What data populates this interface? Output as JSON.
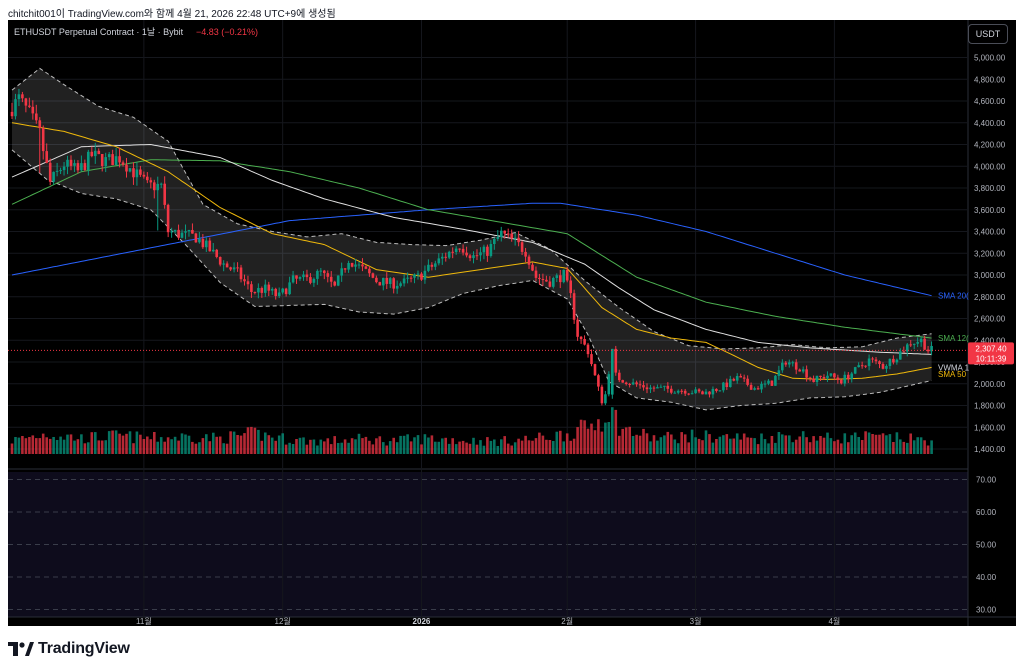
{
  "header": {
    "caption": "chitchit001이 TradingView.com와 함께 4월 21, 2026 22:48 UTC+9에 생성됨"
  },
  "symbol": {
    "title": "ETHUSDT Perpetual Contract · 1날 · Bybit",
    "change": "−4.83 (−0.21%)"
  },
  "currency_button": "USDT",
  "footer": {
    "brand": "TradingView",
    "logo_icon": "tradingview-logo-icon"
  },
  "colors": {
    "up": "#089981",
    "down": "#f23645",
    "sma200": "#2962ff",
    "sma120": "#4caf50",
    "vwma": "#e0e0e0",
    "sma50": "#f0b90b",
    "band": "#bdbdbd",
    "background": "#000000"
  },
  "chart_data": [
    {
      "type": "candlestick",
      "title": "ETHUSDT Perpetual Contract · 1날 · Bybit",
      "price_axis": {
        "ticks": [
          "5,000.00",
          "4,800.00",
          "4,600.00",
          "4,400.00",
          "4,200.00",
          "4,000.00",
          "3,800.00",
          "3,600.00",
          "3,400.00",
          "3,200.00",
          "3,000.00",
          "2,800.00",
          "2,600.00",
          "2,400.00",
          "2,200.00",
          "2,000.00",
          "1,800.00",
          "1,600.00",
          "1,400.00"
        ],
        "ylim": [
          1350,
          5100
        ]
      },
      "time_axis": {
        "ticks": [
          "11월",
          "12월",
          "2026",
          "2월",
          "3월",
          "4월"
        ],
        "bold_tick": "2026"
      },
      "last_price": {
        "value": "2,307.40",
        "countdown": "10:11:39"
      },
      "anchors": [
        [
          0,
          4500
        ],
        [
          3,
          4620
        ],
        [
          6,
          4480
        ],
        [
          9,
          4300
        ],
        [
          12,
          3850
        ],
        [
          16,
          4020
        ],
        [
          20,
          3950
        ],
        [
          24,
          4100
        ],
        [
          28,
          4050
        ],
        [
          32,
          4080
        ],
        [
          36,
          3950
        ],
        [
          40,
          3820
        ],
        [
          44,
          3820
        ],
        [
          46,
          3400
        ],
        [
          50,
          3370
        ],
        [
          54,
          3350
        ],
        [
          58,
          3230
        ],
        [
          62,
          3100
        ],
        [
          66,
          3020
        ],
        [
          70,
          2850
        ],
        [
          74,
          2870
        ],
        [
          78,
          2800
        ],
        [
          82,
          2950
        ],
        [
          86,
          2960
        ],
        [
          90,
          3020
        ],
        [
          94,
          2880
        ],
        [
          98,
          3150
        ],
        [
          102,
          3050
        ],
        [
          106,
          2950
        ],
        [
          110,
          2920
        ],
        [
          114,
          2930
        ],
        [
          118,
          2980
        ],
        [
          122,
          3080
        ],
        [
          126,
          3180
        ],
        [
          130,
          3280
        ],
        [
          134,
          3170
        ],
        [
          138,
          3220
        ],
        [
          142,
          3380
        ],
        [
          146,
          3300
        ],
        [
          149,
          3220
        ],
        [
          152,
          2980
        ],
        [
          156,
          2940
        ],
        [
          160,
          3000
        ],
        [
          162,
          2800
        ],
        [
          164,
          2450
        ],
        [
          167,
          2300
        ],
        [
          170,
          1950
        ],
        [
          172,
          1900
        ],
        [
          173,
          2120
        ],
        [
          176,
          2050
        ],
        [
          180,
          2000
        ],
        [
          185,
          1960
        ],
        [
          190,
          1950
        ],
        [
          195,
          1940
        ],
        [
          200,
          1910
        ],
        [
          205,
          1960
        ],
        [
          210,
          2050
        ],
        [
          215,
          1960
        ],
        [
          220,
          2010
        ],
        [
          224,
          2210
        ],
        [
          228,
          2150
        ],
        [
          232,
          2030
        ],
        [
          236,
          2080
        ],
        [
          240,
          2030
        ],
        [
          244,
          2120
        ],
        [
          248,
          2220
        ],
        [
          252,
          2160
        ],
        [
          256,
          2260
        ],
        [
          260,
          2380
        ],
        [
          263,
          2400
        ],
        [
          265,
          2310
        ]
      ],
      "volume_anchors": [
        [
          0,
          0.3
        ],
        [
          10,
          0.45
        ],
        [
          20,
          0.35
        ],
        [
          30,
          0.4
        ],
        [
          40,
          0.35
        ],
        [
          50,
          0.38
        ],
        [
          60,
          0.35
        ],
        [
          70,
          0.45
        ],
        [
          80,
          0.32
        ],
        [
          90,
          0.28
        ],
        [
          100,
          0.33
        ],
        [
          110,
          0.3
        ],
        [
          120,
          0.35
        ],
        [
          130,
          0.3
        ],
        [
          140,
          0.28
        ],
        [
          150,
          0.33
        ],
        [
          160,
          0.45
        ],
        [
          166,
          0.6
        ],
        [
          170,
          0.8
        ],
        [
          172,
          1.0
        ],
        [
          176,
          0.55
        ],
        [
          185,
          0.35
        ],
        [
          195,
          0.4
        ],
        [
          205,
          0.38
        ],
        [
          215,
          0.35
        ],
        [
          225,
          0.42
        ],
        [
          235,
          0.35
        ],
        [
          245,
          0.38
        ],
        [
          255,
          0.35
        ],
        [
          265,
          0.3
        ]
      ],
      "series": [
        {
          "name": "SMA 200",
          "color": "#2962ff",
          "values": [
            [
              0,
              3000
            ],
            [
              40,
              3250
            ],
            [
              80,
              3500
            ],
            [
              120,
              3600
            ],
            [
              150,
              3660
            ],
            [
              158,
              3660
            ],
            [
              180,
              3550
            ],
            [
              200,
              3400
            ],
            [
              220,
              3200
            ],
            [
              240,
              3000
            ],
            [
              265,
              2810
            ]
          ]
        },
        {
          "name": "SMA 120",
          "color": "#4caf50",
          "values": [
            [
              0,
              3650
            ],
            [
              20,
              3950
            ],
            [
              40,
              4060
            ],
            [
              60,
              4050
            ],
            [
              80,
              3950
            ],
            [
              100,
              3800
            ],
            [
              120,
              3600
            ],
            [
              140,
              3490
            ],
            [
              160,
              3380
            ],
            [
              180,
              2980
            ],
            [
              200,
              2750
            ],
            [
              220,
              2620
            ],
            [
              240,
              2520
            ],
            [
              265,
              2420
            ]
          ]
        },
        {
          "name": "VWMA",
          "color": "#e0e0e0",
          "values": [
            [
              0,
              3900
            ],
            [
              20,
              4180
            ],
            [
              40,
              4200
            ],
            [
              60,
              4080
            ],
            [
              75,
              3870
            ],
            [
              90,
              3700
            ],
            [
              110,
              3530
            ],
            [
              130,
              3420
            ],
            [
              150,
              3300
            ],
            [
              165,
              3100
            ],
            [
              175,
              2880
            ],
            [
              185,
              2680
            ],
            [
              200,
              2500
            ],
            [
              215,
              2380
            ],
            [
              230,
              2330
            ],
            [
              250,
              2290
            ],
            [
              265,
              2270
            ]
          ]
        },
        {
          "name": "SMA 50",
          "color": "#f0b90b",
          "values": [
            [
              0,
              4400
            ],
            [
              15,
              4320
            ],
            [
              30,
              4180
            ],
            [
              45,
              3950
            ],
            [
              60,
              3620
            ],
            [
              75,
              3380
            ],
            [
              90,
              3280
            ],
            [
              105,
              3050
            ],
            [
              120,
              2980
            ],
            [
              135,
              3050
            ],
            [
              150,
              3120
            ],
            [
              160,
              3060
            ],
            [
              170,
              2700
            ],
            [
              180,
              2500
            ],
            [
              190,
              2420
            ],
            [
              200,
              2380
            ],
            [
              208,
              2260
            ],
            [
              215,
              2150
            ],
            [
              225,
              2050
            ],
            [
              235,
              2040
            ],
            [
              245,
              2050
            ],
            [
              255,
              2090
            ],
            [
              265,
              2150
            ]
          ]
        },
        {
          "name": "Band upper",
          "color": "#bdbdbd",
          "values": [
            [
              0,
              4700
            ],
            [
              8,
              4900
            ],
            [
              15,
              4750
            ],
            [
              25,
              4550
            ],
            [
              35,
              4450
            ],
            [
              45,
              4230
            ],
            [
              55,
              3650
            ],
            [
              65,
              3470
            ],
            [
              75,
              3400
            ],
            [
              85,
              3350
            ],
            [
              95,
              3380
            ],
            [
              105,
              3300
            ],
            [
              115,
              3280
            ],
            [
              125,
              3270
            ],
            [
              135,
              3320
            ],
            [
              145,
              3390
            ],
            [
              155,
              3240
            ],
            [
              165,
              2950
            ],
            [
              175,
              2700
            ],
            [
              185,
              2480
            ],
            [
              195,
              2350
            ],
            [
              205,
              2320
            ],
            [
              215,
              2330
            ],
            [
              225,
              2360
            ],
            [
              235,
              2330
            ],
            [
              245,
              2340
            ],
            [
              255,
              2420
            ],
            [
              265,
              2460
            ]
          ]
        },
        {
          "name": "Band lower",
          "color": "#bdbdbd",
          "values": [
            [
              0,
              4150
            ],
            [
              10,
              3880
            ],
            [
              20,
              3750
            ],
            [
              30,
              3700
            ],
            [
              40,
              3600
            ],
            [
              50,
              3280
            ],
            [
              60,
              2930
            ],
            [
              70,
              2710
            ],
            [
              80,
              2720
            ],
            [
              90,
              2730
            ],
            [
              100,
              2660
            ],
            [
              110,
              2640
            ],
            [
              120,
              2700
            ],
            [
              130,
              2830
            ],
            [
              140,
              2900
            ],
            [
              150,
              2950
            ],
            [
              160,
              2780
            ],
            [
              166,
              2450
            ],
            [
              172,
              2020
            ],
            [
              180,
              1870
            ],
            [
              190,
              1830
            ],
            [
              200,
              1760
            ],
            [
              210,
              1800
            ],
            [
              220,
              1820
            ],
            [
              230,
              1870
            ],
            [
              240,
              1880
            ],
            [
              250,
              1920
            ],
            [
              265,
              2030
            ]
          ]
        }
      ],
      "labels": {
        "sma200": "SMA 20(",
        "sma120": "SMA 12(",
        "vwma": "VWMA 1",
        "sma50": "SMA 50"
      }
    },
    {
      "type": "line",
      "panel": "oscillator",
      "y_axis": {
        "ticks": [
          "70.00",
          "60.00",
          "50.00",
          "40.00",
          "30.00"
        ],
        "ylim": [
          28,
          72
        ]
      }
    }
  ]
}
